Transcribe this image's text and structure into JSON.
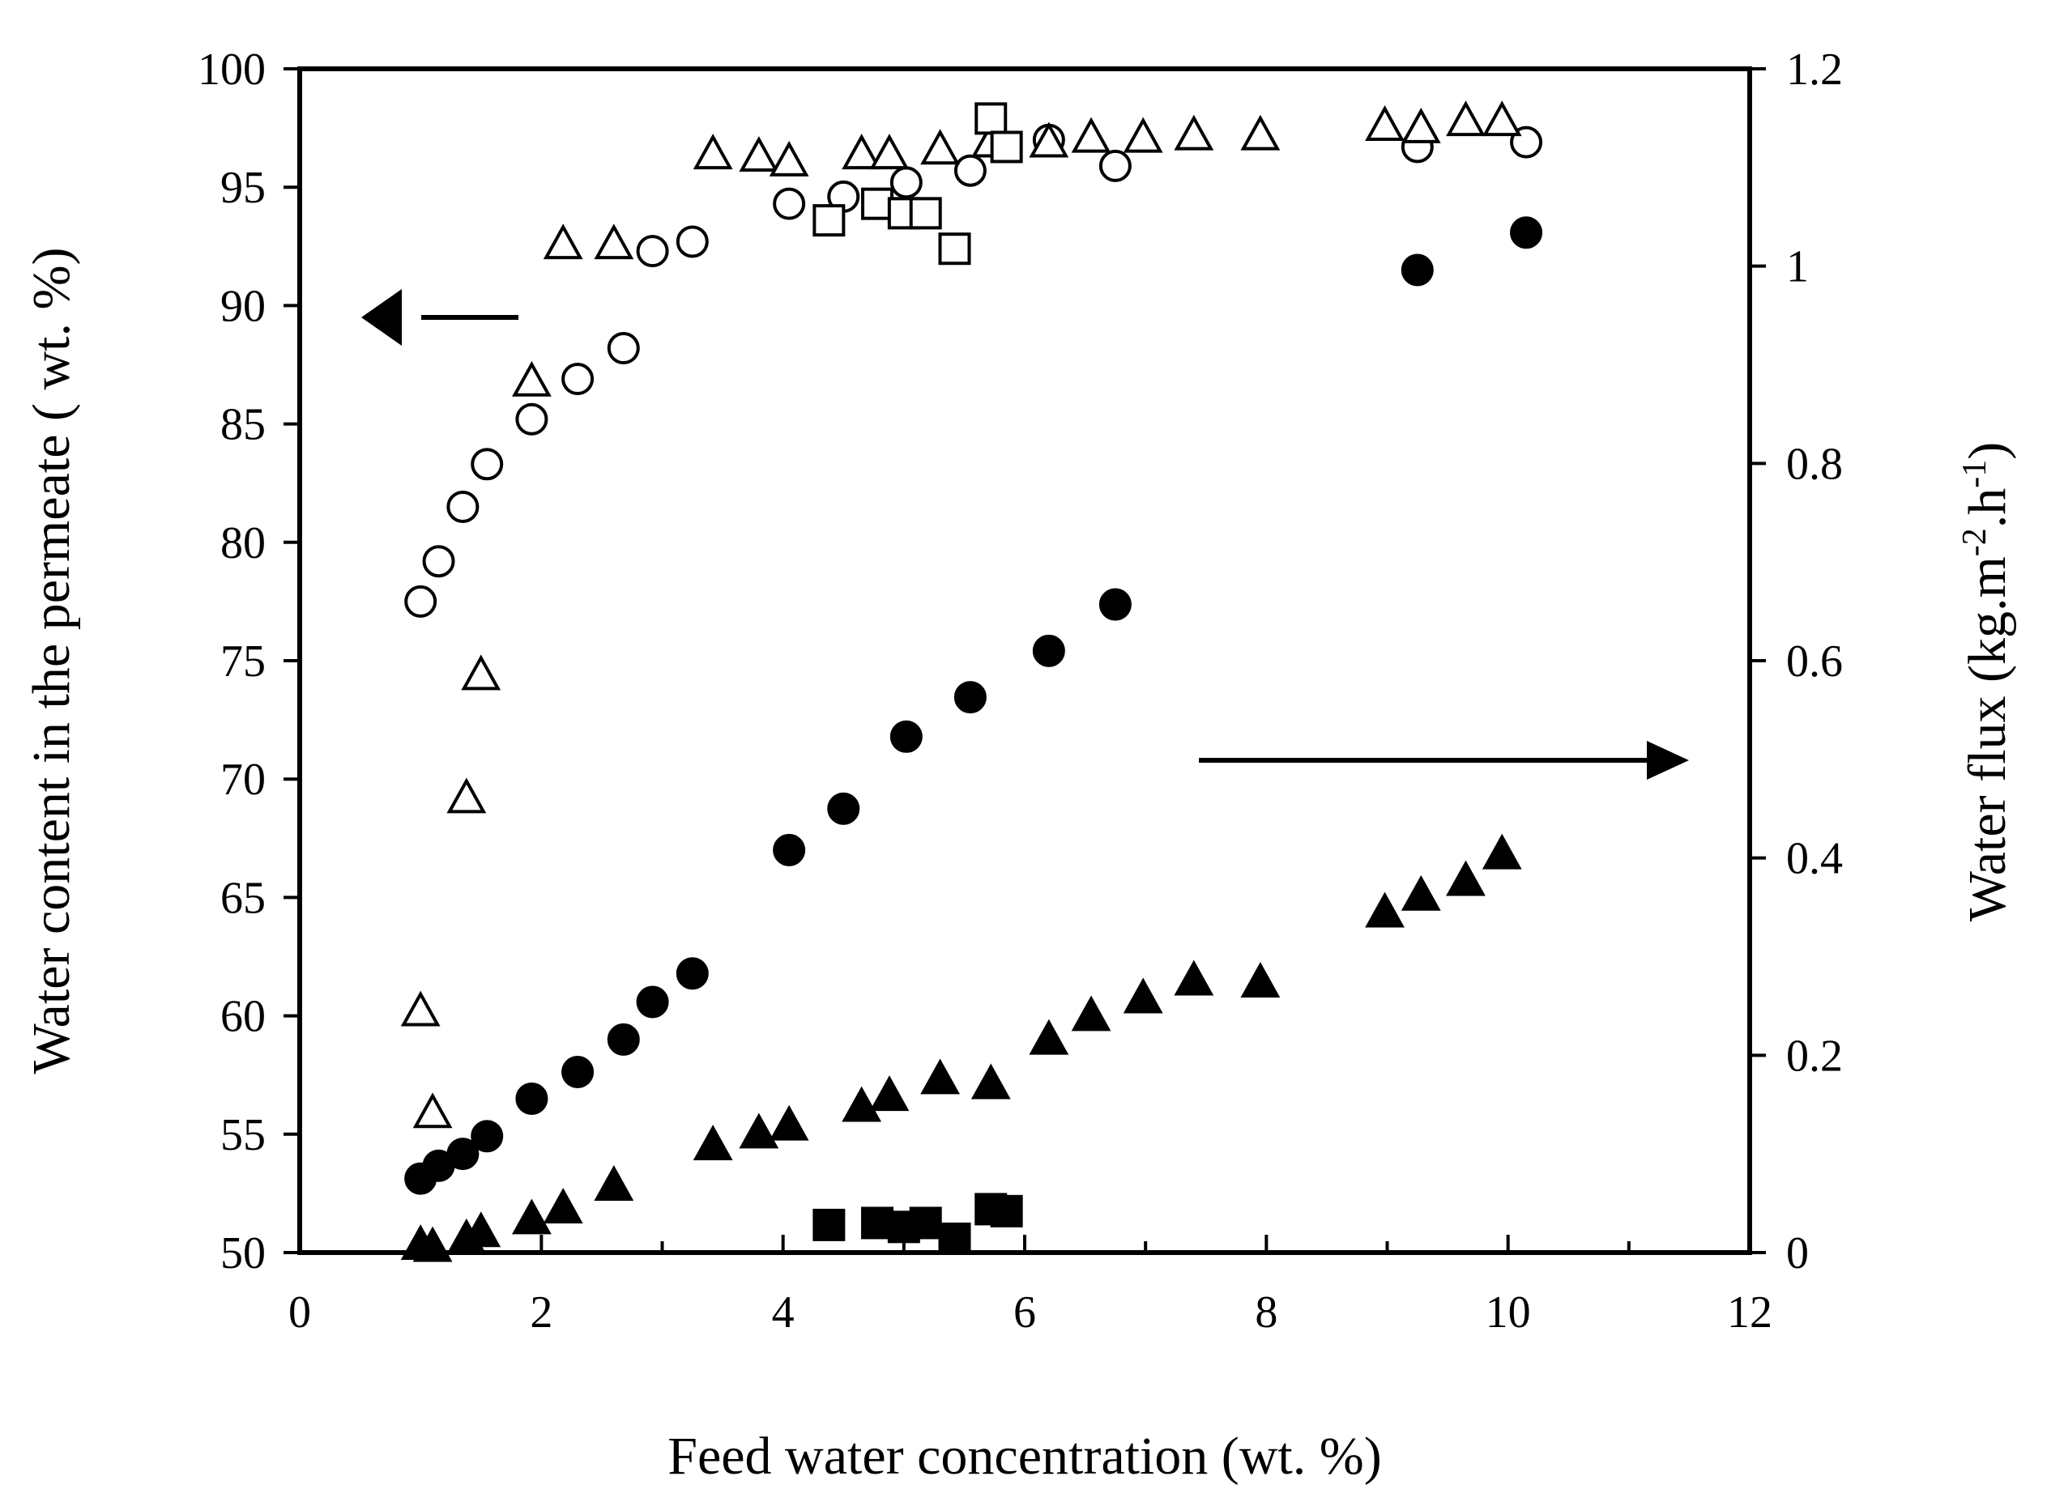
{
  "chart_data": {
    "type": "scatter",
    "xlabel": "Feed water concentration (wt. %)",
    "ylabel_left": "Water content in the permeate ( wt. %)",
    "ylabel_right_base": "Water flux (kg.m",
    "ylabel_right_sup1": "-2",
    "ylabel_right_mid": ".h",
    "ylabel_right_sup2": "-1",
    "ylabel_right_end": ")",
    "xlim": [
      0,
      12
    ],
    "ylim_left": [
      50,
      100
    ],
    "ylim_right": [
      0,
      1.2
    ],
    "x_ticks": [
      "0",
      "2",
      "4",
      "6",
      "8",
      "10",
      "12"
    ],
    "y_left_ticks": [
      "50",
      "55",
      "60",
      "65",
      "70",
      "75",
      "80",
      "85",
      "90",
      "95",
      "100"
    ],
    "y_right_ticks": [
      "0",
      "0.2",
      "0.4",
      "0.6",
      "0.8",
      "1",
      "1.2"
    ],
    "annotations": [
      {
        "type": "arrow",
        "direction": "left",
        "meaning": "left axis series (open symbols)"
      },
      {
        "type": "arrow",
        "direction": "right",
        "meaning": "right axis series (filled symbols)"
      }
    ],
    "series": [
      {
        "name": "Water content (open circles)",
        "axis": "left",
        "marker": "circle",
        "filled": false,
        "x": [
          1.0,
          1.15,
          1.35,
          1.55,
          1.92,
          2.3,
          2.68,
          2.92,
          3.25,
          4.05,
          4.5,
          5.02,
          5.55,
          6.2,
          6.75,
          9.25,
          10.15
        ],
        "y": [
          77.5,
          79.2,
          81.5,
          83.3,
          85.2,
          86.9,
          88.2,
          92.3,
          92.7,
          94.3,
          94.6,
          95.2,
          95.7,
          97.0,
          95.9,
          96.7,
          96.9
        ]
      },
      {
        "name": "Water content (open triangles)",
        "axis": "left",
        "marker": "triangle",
        "filled": false,
        "x": [
          1.0,
          1.1,
          1.38,
          1.5,
          1.92,
          2.18,
          2.6,
          3.42,
          3.8,
          4.05,
          4.65,
          4.88,
          5.3,
          5.72,
          6.2,
          6.55,
          6.98,
          7.4,
          7.95,
          8.98,
          9.28,
          9.65,
          9.95
        ],
        "y": [
          60.2,
          55.9,
          69.2,
          74.4,
          86.8,
          92.6,
          92.6,
          96.4,
          96.3,
          96.1,
          96.4,
          96.4,
          96.6,
          96.9,
          96.9,
          97.1,
          97.1,
          97.2,
          97.2,
          97.6,
          97.5,
          97.8,
          97.8
        ]
      },
      {
        "name": "Water content (open squares)",
        "axis": "left",
        "marker": "square",
        "filled": false,
        "x": [
          4.38,
          4.78,
          5.0,
          5.18,
          5.42,
          5.72,
          5.85
        ],
        "y": [
          93.6,
          94.3,
          93.9,
          93.9,
          92.4,
          97.9,
          96.7
        ]
      },
      {
        "name": "Water flux (filled circles)",
        "axis": "right",
        "marker": "circle",
        "filled": true,
        "x": [
          1.0,
          1.15,
          1.35,
          1.55,
          1.92,
          2.3,
          2.68,
          2.92,
          3.25,
          4.05,
          4.5,
          5.02,
          5.55,
          6.2,
          6.75,
          9.25,
          10.15
        ],
        "y": [
          0.075,
          0.088,
          0.1,
          0.118,
          0.156,
          0.183,
          0.216,
          0.254,
          0.283,
          0.408,
          0.45,
          0.523,
          0.563,
          0.61,
          0.657,
          0.996,
          1.034
        ]
      },
      {
        "name": "Water flux (filled triangles)",
        "axis": "right",
        "marker": "triangle",
        "filled": true,
        "x": [
          1.0,
          1.1,
          1.38,
          1.5,
          1.92,
          2.18,
          2.6,
          3.42,
          3.8,
          4.05,
          4.65,
          4.88,
          5.3,
          5.72,
          6.2,
          6.55,
          6.98,
          7.4,
          7.95,
          8.98,
          9.28,
          9.65,
          9.95
        ],
        "y": [
          0.008,
          0.006,
          0.014,
          0.021,
          0.034,
          0.045,
          0.068,
          0.109,
          0.121,
          0.129,
          0.148,
          0.159,
          0.176,
          0.171,
          0.216,
          0.24,
          0.258,
          0.276,
          0.274,
          0.345,
          0.362,
          0.377,
          0.404
        ]
      },
      {
        "name": "Water flux (filled squares)",
        "axis": "right",
        "marker": "square",
        "filled": true,
        "x": [
          4.38,
          4.78,
          5.0,
          5.18,
          5.42,
          5.72,
          5.85
        ],
        "y": [
          0.028,
          0.03,
          0.026,
          0.03,
          0.014,
          0.044,
          0.042
        ]
      }
    ]
  }
}
